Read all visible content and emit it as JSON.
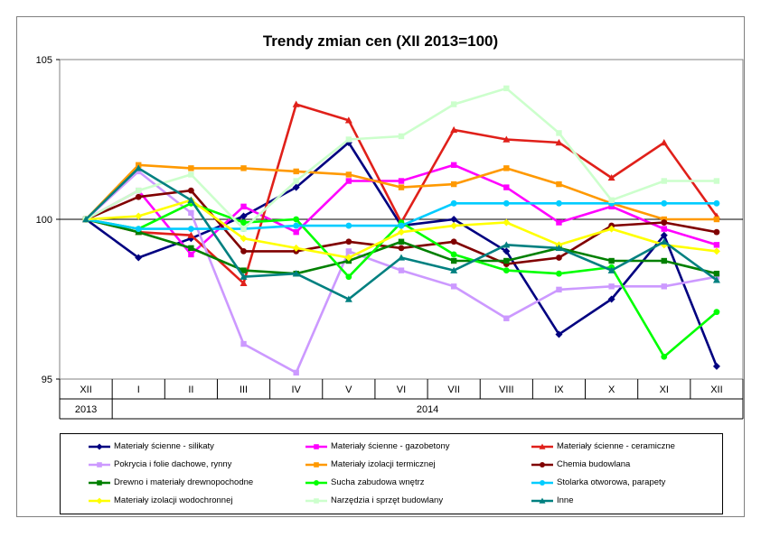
{
  "chart_data": {
    "type": "line",
    "title": "Trendy zmian cen (XII 2013=100)",
    "categories": [
      "XII",
      "I",
      "II",
      "III",
      "IV",
      "V",
      "VI",
      "VII",
      "VIII",
      "IX",
      "X",
      "XI",
      "XII"
    ],
    "year_groups": [
      {
        "label": "2013",
        "start": 0,
        "end": 0
      },
      {
        "label": "2014",
        "start": 1,
        "end": 12
      }
    ],
    "ylim": [
      95,
      105
    ],
    "yticks": [
      95,
      100,
      105
    ],
    "baseline": 100,
    "grid": false,
    "legend": "bottom",
    "series": [
      {
        "name": "Materiały ścienne - silikaty",
        "color": "#000080",
        "marker": "diamond",
        "values": [
          100,
          98.8,
          99.4,
          100.1,
          101,
          102.4,
          99.8,
          100,
          99,
          96.4,
          97.5,
          99.5,
          95.4
        ]
      },
      {
        "name": "Materiały ścienne - gazobetony",
        "color": "#FF00FF",
        "marker": "square",
        "values": [
          100,
          100.9,
          98.9,
          100.4,
          99.6,
          101.2,
          101.2,
          101.7,
          101,
          99.9,
          100.4,
          99.7,
          99.2
        ]
      },
      {
        "name": "Materiały ścienne - ceramiczne",
        "color": "#E0201A",
        "marker": "triangle",
        "values": [
          100,
          99.6,
          99.5,
          98,
          103.6,
          103.1,
          99.9,
          102.8,
          102.5,
          102.4,
          101.3,
          102.4,
          100.1
        ]
      },
      {
        "name": "Pokrycia i folie dachowe, rynny",
        "color": "#CC99FF",
        "marker": "square",
        "values": [
          100,
          101.5,
          100.2,
          96.1,
          95.2,
          99,
          98.4,
          97.9,
          96.9,
          97.8,
          97.9,
          97.9,
          98.2
        ]
      },
      {
        "name": "Materiały izolacji termicznej",
        "color": "#FF9900",
        "marker": "square",
        "values": [
          100,
          101.7,
          101.6,
          101.6,
          101.5,
          101.4,
          101,
          101.1,
          101.6,
          101.1,
          100.5,
          100,
          100
        ]
      },
      {
        "name": "Chemia budowlana",
        "color": "#800000",
        "marker": "circle",
        "values": [
          100,
          100.7,
          100.9,
          99,
          99,
          99.3,
          99.1,
          99.3,
          98.6,
          98.8,
          99.8,
          99.9,
          99.6
        ]
      },
      {
        "name": "Drewno i materiały drewnopochodne",
        "color": "#008000",
        "marker": "square",
        "values": [
          100,
          99.6,
          99.1,
          98.4,
          98.3,
          98.7,
          99.3,
          98.7,
          98.7,
          99.1,
          98.7,
          98.7,
          98.3
        ]
      },
      {
        "name": "Sucha zabudowa wnętrz",
        "color": "#00FF00",
        "marker": "circle",
        "values": [
          100,
          99.7,
          100.5,
          99.9,
          100,
          98.2,
          99.9,
          98.9,
          98.4,
          98.3,
          98.5,
          95.7,
          97.1
        ]
      },
      {
        "name": "Stolarka otworowa, parapety",
        "color": "#00CCFF",
        "marker": "circle",
        "values": [
          100,
          99.7,
          99.7,
          99.7,
          99.8,
          99.8,
          99.8,
          100.5,
          100.5,
          100.5,
          100.5,
          100.5,
          100.5
        ]
      },
      {
        "name": "Materiały izolacji wodochronnej",
        "color": "#FFFF00",
        "marker": "diamond",
        "values": [
          100,
          100.1,
          100.6,
          99.4,
          99.1,
          98.8,
          99.6,
          99.8,
          99.9,
          99.2,
          99.7,
          99.2,
          99
        ]
      },
      {
        "name": "Narzędzia i sprzęt budowlany",
        "color": "#CCFFCC",
        "marker": "square",
        "values": [
          100,
          100.9,
          101.4,
          99.7,
          101.2,
          102.5,
          102.6,
          103.6,
          104.1,
          102.7,
          100.6,
          101.2,
          101.2
        ]
      },
      {
        "name": "Inne",
        "color": "#008080",
        "marker": "triangle",
        "values": [
          100,
          101.6,
          100.6,
          98.2,
          98.3,
          97.5,
          98.8,
          98.4,
          99.2,
          99.1,
          98.4,
          99.3,
          98.1
        ]
      }
    ]
  }
}
